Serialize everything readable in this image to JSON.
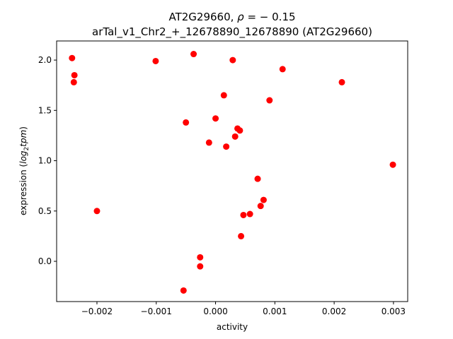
{
  "chart_data": {
    "type": "scatter",
    "title_line1_prefix": "AT2G29660, ",
    "title_line1_rho_symbol": "ρ",
    "title_line1_rho_value": " = − 0.15",
    "title_line2": "arTal_v1_Chr2_+_12678890_12678890 (AT2G29660)",
    "xlabel": "activity",
    "ylabel_prefix": "expression (",
    "ylabel_log": "log",
    "ylabel_sub": "2",
    "ylabel_tpm": "tpm",
    "ylabel_suffix": ")",
    "xlim": [
      -0.00268,
      0.00324
    ],
    "ylim": [
      -0.4,
      2.19
    ],
    "xticks": [
      {
        "value": -0.002,
        "label": "−0.002"
      },
      {
        "value": -0.001,
        "label": "−0.001"
      },
      {
        "value": 0.0,
        "label": "0.000"
      },
      {
        "value": 0.001,
        "label": "0.001"
      },
      {
        "value": 0.002,
        "label": "0.002"
      },
      {
        "value": 0.003,
        "label": "0.003"
      }
    ],
    "yticks": [
      {
        "value": 0.0,
        "label": "0.0"
      },
      {
        "value": 0.5,
        "label": "0.5"
      },
      {
        "value": 1.0,
        "label": "1.0"
      },
      {
        "value": 1.5,
        "label": "1.5"
      },
      {
        "value": 2.0,
        "label": "2.0"
      }
    ],
    "marker_color": "#ff0000",
    "points": [
      {
        "x": -0.00242,
        "y": 2.02
      },
      {
        "x": -0.00238,
        "y": 1.85
      },
      {
        "x": -0.00239,
        "y": 1.78
      },
      {
        "x": -0.002,
        "y": 0.5
      },
      {
        "x": -0.00101,
        "y": 1.99
      },
      {
        "x": -0.00054,
        "y": -0.29
      },
      {
        "x": -0.0005,
        "y": 1.38
      },
      {
        "x": -0.00037,
        "y": 2.06
      },
      {
        "x": -0.00026,
        "y": 0.04
      },
      {
        "x": -0.00026,
        "y": -0.05
      },
      {
        "x": -0.00011,
        "y": 1.18
      },
      {
        "x": 0.0,
        "y": 1.42
      },
      {
        "x": 0.00014,
        "y": 1.65
      },
      {
        "x": 0.00018,
        "y": 1.14
      },
      {
        "x": 0.00029,
        "y": 2.0
      },
      {
        "x": 0.00033,
        "y": 1.24
      },
      {
        "x": 0.00037,
        "y": 1.32
      },
      {
        "x": 0.00041,
        "y": 1.3
      },
      {
        "x": 0.00043,
        "y": 0.25
      },
      {
        "x": 0.00047,
        "y": 0.46
      },
      {
        "x": 0.00058,
        "y": 0.47
      },
      {
        "x": 0.00071,
        "y": 0.82
      },
      {
        "x": 0.00076,
        "y": 0.55
      },
      {
        "x": 0.00081,
        "y": 0.61
      },
      {
        "x": 0.00091,
        "y": 1.6
      },
      {
        "x": 0.00113,
        "y": 1.91
      },
      {
        "x": 0.00213,
        "y": 1.78
      },
      {
        "x": 0.00299,
        "y": 0.96
      }
    ]
  }
}
